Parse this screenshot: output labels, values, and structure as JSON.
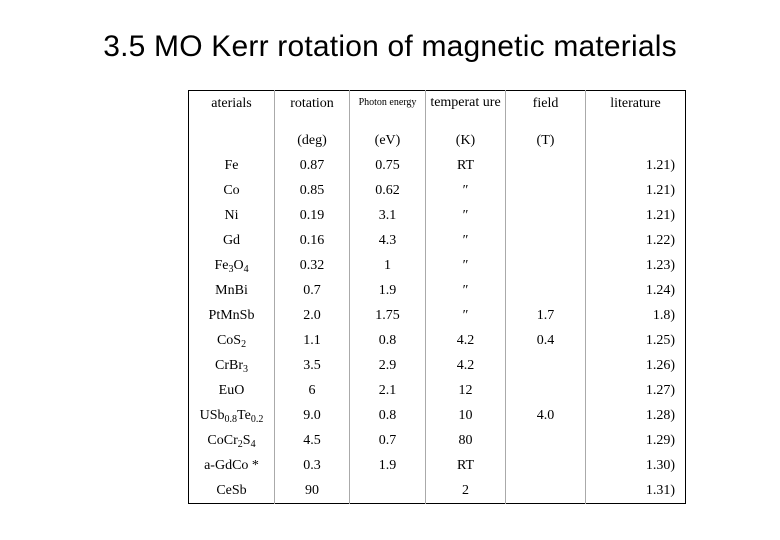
{
  "title": "3.5 MO Kerr rotation of magnetic materials",
  "headers": {
    "material": "aterials",
    "rotation": "rotation",
    "photon_energy": "Photon energy",
    "temperature": "temperat ure",
    "field": "field",
    "literature": "literature"
  },
  "units": {
    "rotation": "(deg)",
    "photon_energy": "(eV)",
    "temperature": "(K)",
    "field": "(T)"
  },
  "rows": [
    {
      "material": "Fe",
      "rotation": "0.87",
      "energy": "0.75",
      "temp": "RT",
      "field": "",
      "lit": "1.21)"
    },
    {
      "material": "Co",
      "rotation": "0.85",
      "energy": "0.62",
      "temp": "″",
      "field": "",
      "lit": "1.21)"
    },
    {
      "material": "Ni",
      "rotation": "0.19",
      "energy": "3.1",
      "temp": "″",
      "field": "",
      "lit": "1.21)"
    },
    {
      "material": "Gd",
      "rotation": "0.16",
      "energy": "4.3",
      "temp": "″",
      "field": "",
      "lit": "1.22)"
    },
    {
      "material": "Fe3O4",
      "rotation": "0.32",
      "energy": "1",
      "temp": "″",
      "field": "",
      "lit": "1.23)"
    },
    {
      "material": "MnBi",
      "rotation": "0.7",
      "energy": "1.9",
      "temp": "″",
      "field": "",
      "lit": "1.24)"
    },
    {
      "material": "PtMnSb",
      "rotation": "2.0",
      "energy": "1.75",
      "temp": "″",
      "field": "1.7",
      "lit": "1.8)"
    },
    {
      "material": "CoS2",
      "rotation": "1.1",
      "energy": "0.8",
      "temp": "4.2",
      "field": "0.4",
      "lit": "1.25)"
    },
    {
      "material": "CrBr3",
      "rotation": "3.5",
      "energy": "2.9",
      "temp": "4.2",
      "field": "",
      "lit": "1.26)"
    },
    {
      "material": "EuO",
      "rotation": "6",
      "energy": "2.1",
      "temp": "12",
      "field": "",
      "lit": "1.27)"
    },
    {
      "material": "USb0.8Te0.2",
      "rotation": "9.0",
      "energy": "0.8",
      "temp": "10",
      "field": "4.0",
      "lit": "1.28)"
    },
    {
      "material": "CoCr2S4",
      "rotation": "4.5",
      "energy": "0.7",
      "temp": "80",
      "field": "",
      "lit": "1.29)"
    },
    {
      "material": "a-GdCo *",
      "rotation": "0.3",
      "energy": "1.9",
      "temp": "RT",
      "field": "",
      "lit": "1.30)"
    },
    {
      "material": "CeSb",
      "rotation": "90",
      "energy": "",
      "temp": "2",
      "field": "",
      "lit": "1.31)"
    }
  ]
}
